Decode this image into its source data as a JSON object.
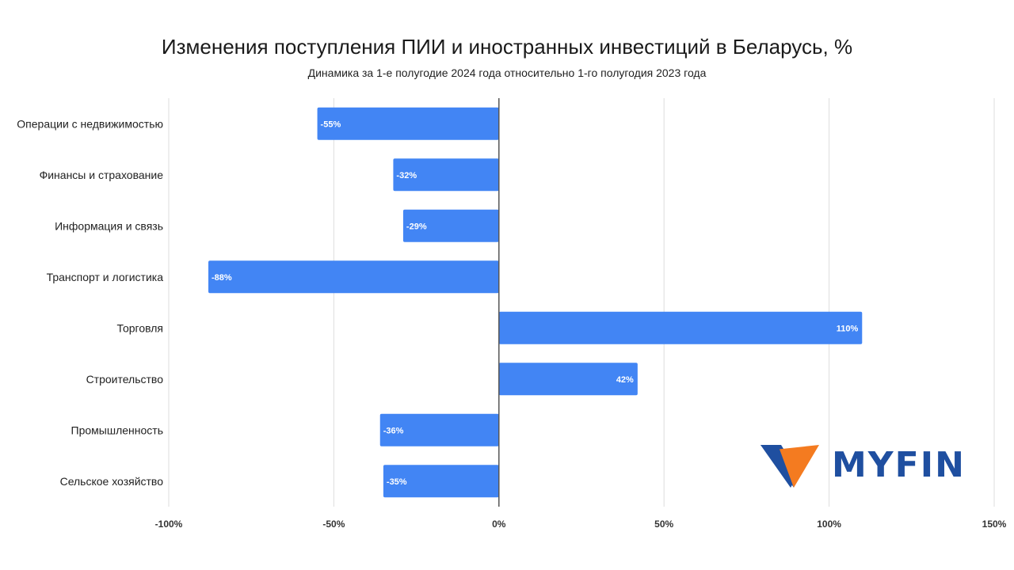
{
  "chart_data": {
    "type": "bar",
    "orientation": "horizontal",
    "title": "Изменения поступления ПИИ и иностранных инвестиций в Беларусь, %",
    "subtitle": "Динамика за 1-е полугодие 2024 года относительно 1-го полугодия 2023 года",
    "categories": [
      "Операции с недвижимостью",
      "Финансы и страхование",
      "Информация и связь",
      "Транспорт и логистика",
      "Торговля",
      "Строительство",
      "Промышленность",
      "Сельское хозяйство"
    ],
    "values": [
      -55,
      -32,
      -29,
      -88,
      110,
      42,
      -36,
      -35
    ],
    "data_labels": [
      "-55%",
      "-32%",
      "-29%",
      "-88%",
      "110%",
      "42%",
      "-36%",
      "-35%"
    ],
    "xlim": [
      -100,
      150
    ],
    "x_ticks": [
      -100,
      -50,
      0,
      50,
      100,
      150
    ],
    "x_tick_labels": [
      "-100%",
      "-50%",
      "0%",
      "50%",
      "100%",
      "150%"
    ],
    "grid": true,
    "bar_color": "#4285f4"
  },
  "logo": {
    "text": "MYFIN",
    "color_dark": "#1f4fa0",
    "color_orange": "#f47b20"
  }
}
